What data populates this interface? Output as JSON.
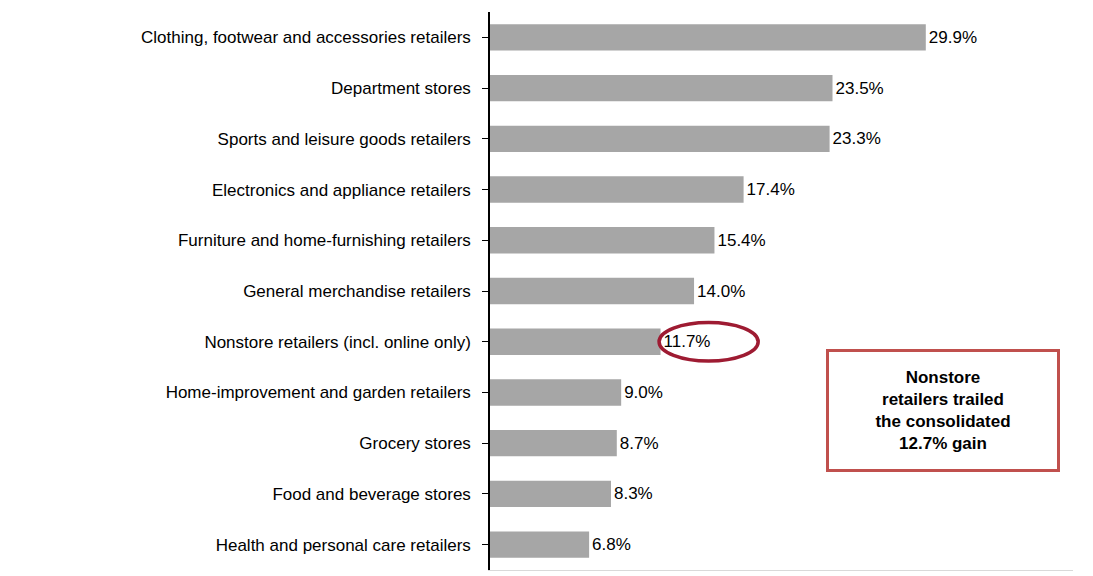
{
  "chart_data": {
    "type": "bar",
    "orientation": "horizontal",
    "categories": [
      "Clothing, footwear and accessories retailers",
      "Department stores",
      "Sports and leisure goods retailers",
      "Electronics and appliance retailers",
      "Furniture and home-furnishing retailers",
      "General merchandise retailers",
      "Nonstore retailers (incl. online only)",
      "Home-improvement and garden retailers",
      "Grocery stores",
      "Food and beverage stores",
      "Health and personal care retailers"
    ],
    "values": [
      29.9,
      23.5,
      23.3,
      17.4,
      15.4,
      14.0,
      11.7,
      9.0,
      8.7,
      8.3,
      6.8
    ],
    "value_labels": [
      "29.9%",
      "23.5%",
      "23.3%",
      "17.4%",
      "15.4%",
      "14.0%",
      "11.7%",
      "9.0%",
      "8.7%",
      "8.3%",
      "6.8%"
    ],
    "data_labels": true,
    "color": "#a6a6a6",
    "xlim": [
      0,
      40
    ],
    "grid": false,
    "tick_labels": "y",
    "annotations": [
      {
        "category": "Nonstore retailers (incl. online only)",
        "text": [
          "Nonstore",
          "retailers trailed",
          "the consolidated",
          "12.7% gain"
        ]
      }
    ]
  }
}
